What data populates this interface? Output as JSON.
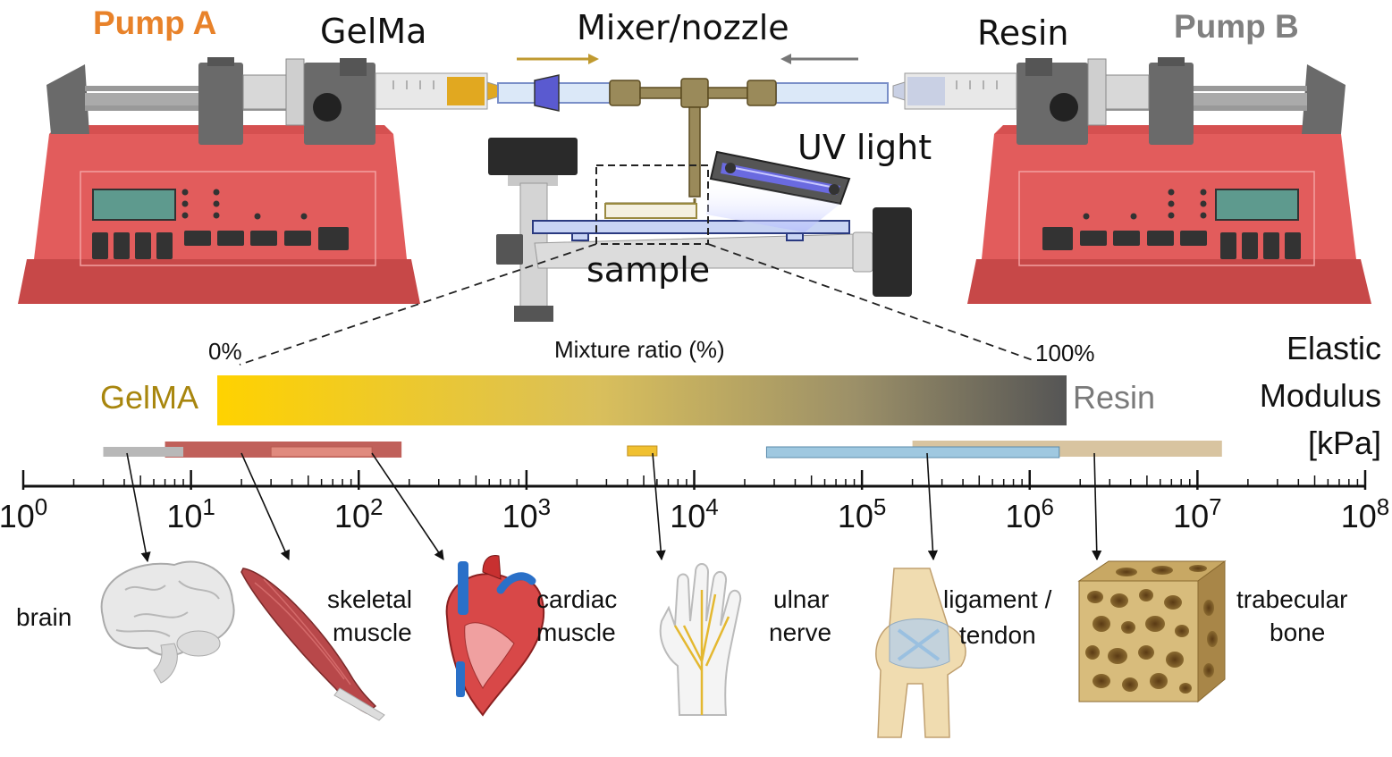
{
  "header": {
    "pump_a": "Pump A",
    "pump_b": "Pump B",
    "gelma": "GelMa",
    "mixer": "Mixer/nozzle",
    "resin": "Resin",
    "uv_light": "UV light",
    "sample": "sample"
  },
  "colors": {
    "pump_a": "#e8822a",
    "pump_b": "#808080",
    "gelma_text": "#a8860e",
    "resin_text": "#7a7a7a",
    "gradient_start": "#ffd200",
    "gradient_end": "#555555",
    "pump_body": "#e25c5c"
  },
  "gradient": {
    "left_pct": "0%",
    "mid_label": "Mixture ratio (%)",
    "right_pct": "100%",
    "left_material": "GelMA",
    "right_material": "Resin"
  },
  "axis": {
    "title_line1": "Elastic",
    "title_line2": "Modulus",
    "title_line3": "[kPa]",
    "base": "10",
    "exponents": [
      "0",
      "1",
      "2",
      "3",
      "4",
      "5",
      "6",
      "7",
      "8"
    ],
    "min_exp": 0,
    "max_exp": 8
  },
  "ranges": [
    {
      "name": "brain",
      "lo": 3,
      "hi": 9,
      "color": "#b8b8b8"
    },
    {
      "name": "skeletal muscle",
      "lo": 7,
      "hi": 180,
      "color": "#c0605a"
    },
    {
      "name": "cardiac muscle",
      "lo": 30,
      "hi": 120,
      "color": "#e08a7e"
    },
    {
      "name": "ulnar nerve",
      "lo": 4000,
      "hi": 6000,
      "color": "#f0c030"
    },
    {
      "name": "ligament / tendon",
      "lo": 27000,
      "hi": 1500000,
      "color": "#9fc8e0"
    },
    {
      "name": "trabecular bone",
      "lo": 200000,
      "hi": 14000000,
      "color": "#d8c4a0"
    }
  ],
  "tissues": {
    "brain": "brain",
    "skeletal_1": "skeletal",
    "skeletal_2": "muscle",
    "cardiac_1": "cardiac",
    "cardiac_2": "muscle",
    "ulnar_1": "ulnar",
    "ulnar_2": "nerve",
    "ligament_1": "ligament /",
    "ligament_2": "tendon",
    "trabecular_1": "trabecular",
    "trabecular_2": "bone"
  }
}
